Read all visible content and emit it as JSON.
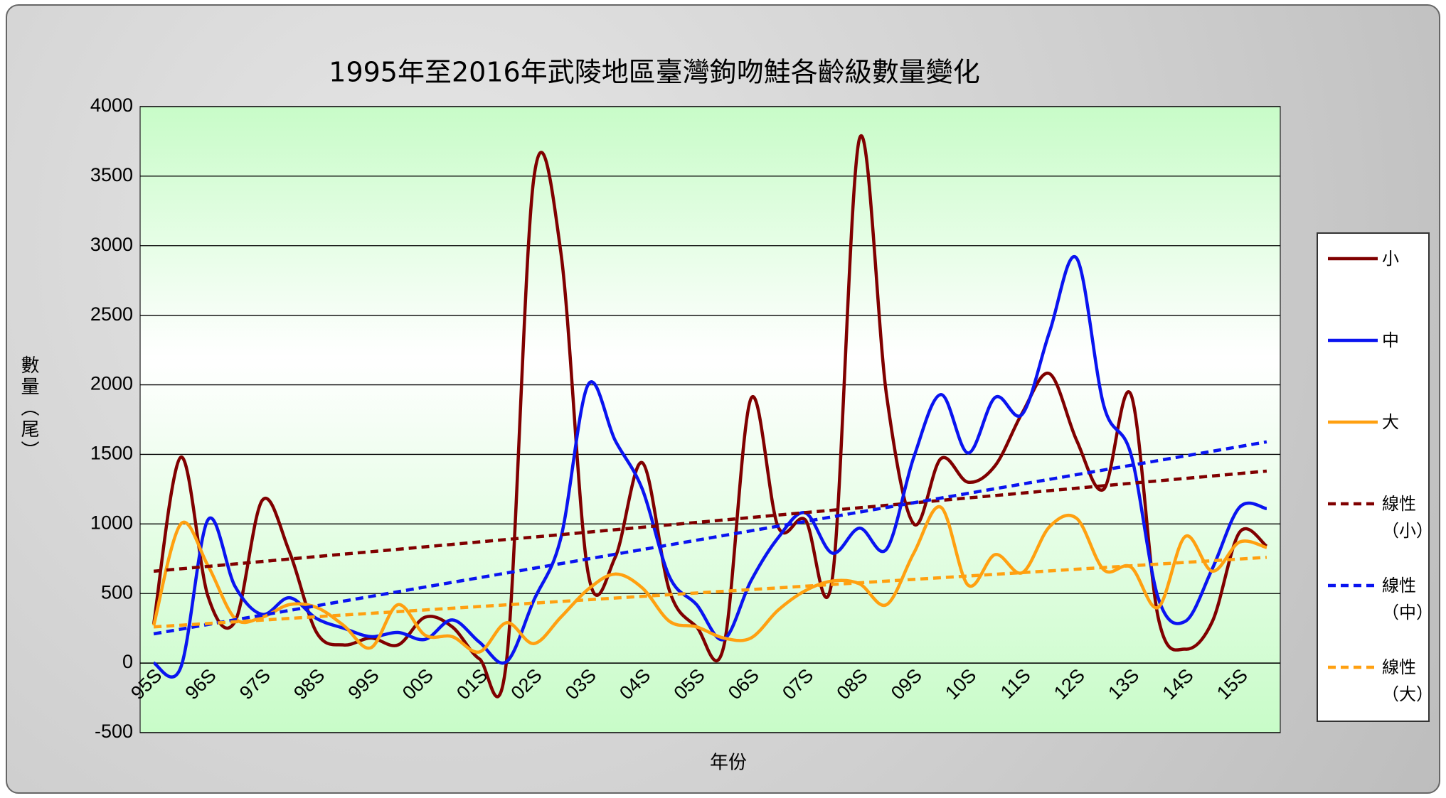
{
  "chart_data": {
    "type": "line",
    "title": "1995年至2016年武陵地區臺灣鉤吻鮭各齡級數量變化",
    "x_label": "年份",
    "y_label": "數量（尾）",
    "categories": [
      "95S",
      null,
      "96S",
      null,
      "97S",
      null,
      "98S",
      null,
      "99S",
      null,
      "00S",
      null,
      "01S",
      null,
      "02S",
      null,
      "03S",
      null,
      "04S",
      null,
      "05S",
      null,
      "06S",
      null,
      "07S",
      null,
      "08S",
      null,
      "09S",
      null,
      "10S",
      null,
      "11S",
      null,
      "12S",
      null,
      "13S",
      null,
      "14S",
      null,
      "15S",
      null
    ],
    "ylim": [
      -500,
      4000
    ],
    "yticks": [
      -500,
      0,
      500,
      1000,
      1500,
      2000,
      2500,
      3000,
      3500,
      4000
    ],
    "grid": true,
    "smooth": true,
    "series": [
      {
        "name": "小",
        "color": "#800000",
        "values": [
          280,
          1480,
          480,
          300,
          1170,
          800,
          220,
          130,
          180,
          130,
          330,
          260,
          30,
          20,
          3480,
          2950,
          650,
          760,
          1440,
          520,
          260,
          120,
          1900,
          980,
          1030,
          610,
          3770,
          1920,
          1000,
          1470,
          1300,
          1420,
          1800,
          2080,
          1600,
          1250,
          1930,
          330,
          100,
          300,
          940,
          840
        ]
      },
      {
        "name": "中",
        "color": "#0a14f0",
        "values": [
          0,
          -30,
          1030,
          550,
          350,
          470,
          320,
          250,
          190,
          220,
          170,
          310,
          150,
          10,
          450,
          900,
          2000,
          1600,
          1250,
          620,
          420,
          170,
          590,
          900,
          1080,
          790,
          970,
          820,
          1480,
          1930,
          1510,
          1910,
          1790,
          2380,
          2910,
          1850,
          1500,
          470,
          300,
          680,
          1120,
          1110
        ]
      },
      {
        "name": "大",
        "color": "#ffa010",
        "values": [
          270,
          1000,
          700,
          320,
          330,
          420,
          400,
          270,
          110,
          420,
          200,
          190,
          80,
          290,
          140,
          330,
          530,
          640,
          540,
          300,
          260,
          180,
          180,
          380,
          520,
          590,
          570,
          420,
          790,
          1120,
          560,
          780,
          650,
          980,
          1040,
          670,
          690,
          400,
          910,
          660,
          870,
          830
        ]
      }
    ],
    "trendlines": [
      {
        "name": "線性（小）",
        "color": "#800000",
        "start": 660,
        "end": 1380
      },
      {
        "name": "線性（中）",
        "color": "#0a14f0",
        "start": 210,
        "end": 1590
      },
      {
        "name": "線性（大）",
        "color": "#ffa010",
        "start": 260,
        "end": 760
      }
    ]
  }
}
